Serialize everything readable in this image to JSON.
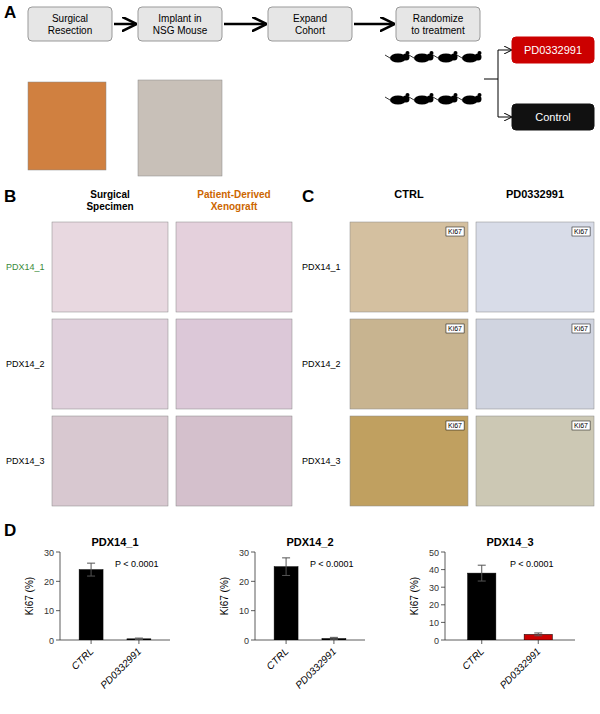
{
  "chart_data": [
    {
      "type": "diagram",
      "title": "A",
      "annotations": [
        "Surgical\nResection",
        "Implant in\nNSG Mouse",
        "Expand\nCohort",
        "Randomize\nto treatment"
      ],
      "categories": [
        "PD0332991",
        "Control"
      ],
      "colors": [
        "#cc0000",
        "#111111"
      ]
    },
    {
      "type": "image_grid",
      "title": "B",
      "categories": [
        "PDX14_1",
        "PDX14_2",
        "PDX14_3"
      ],
      "series": [
        {
          "name": "Surgical\nSpecimen",
          "color": "black"
        },
        {
          "name": "Patient-Derived\nXenograft",
          "color": "#cc6600"
        }
      ]
    },
    {
      "type": "image_grid",
      "title": "C",
      "categories": [
        "PDX14_1",
        "PDX14_2",
        "PDX14_3"
      ],
      "series": [
        {
          "name": "CTRL"
        },
        {
          "name": "PD0332991"
        }
      ],
      "annotations": [
        "Ki67"
      ]
    },
    {
      "type": "bar_panel",
      "title": "D",
      "charts": [
        {
          "type": "bar",
          "title": "PDX14_1",
          "categories": [
            "CTRL",
            "PD0332991"
          ],
          "values": [
            24.0,
            0.4
          ],
          "errors": [
            2.2,
            0.25
          ],
          "colors": [
            "black",
            "black"
          ],
          "ylim": [
            0,
            30
          ],
          "yticks": [
            0,
            10,
            20,
            30
          ],
          "ylabel": "Ki67 (%)",
          "annotations": [
            "P < 0.0001"
          ]
        },
        {
          "type": "bar",
          "title": "PDX14_2",
          "categories": [
            "CTRL",
            "PD0332991"
          ],
          "values": [
            25.0,
            0.5
          ],
          "errors": [
            3.0,
            0.4
          ],
          "colors": [
            "black",
            "black"
          ],
          "ylim": [
            0,
            30
          ],
          "yticks": [
            0,
            10,
            20,
            30
          ],
          "ylabel": "Ki67 (%)",
          "annotations": [
            "P < 0.0001"
          ]
        },
        {
          "type": "bar",
          "title": "PDX14_3",
          "categories": [
            "CTRL",
            "PD0332991"
          ],
          "values": [
            38.0,
            3.2
          ],
          "errors": [
            4.5,
            0.8
          ],
          "colors": [
            "black",
            "#cc0000"
          ],
          "ylim": [
            0,
            50
          ],
          "yticks": [
            0,
            10,
            20,
            30,
            40,
            50
          ],
          "ylabel": "Ki67 (%)",
          "annotations": [
            "P < 0.0001"
          ]
        }
      ]
    }
  ]
}
